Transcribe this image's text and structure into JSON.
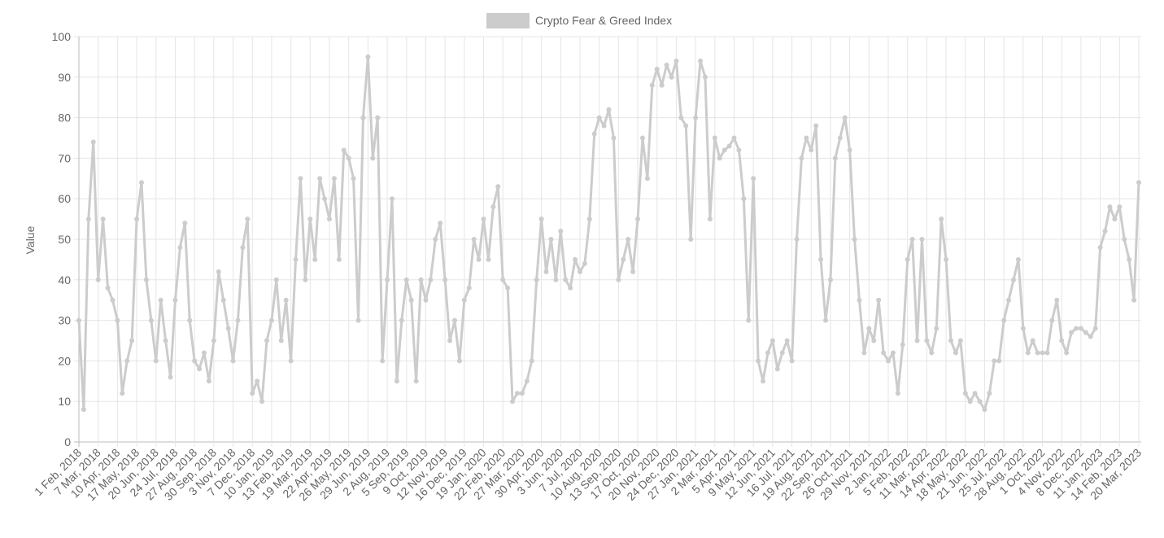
{
  "chart_data": {
    "type": "line",
    "y_label": "Value",
    "legend": "top",
    "grid": true,
    "ylim": [
      0,
      100
    ],
    "yticks": [
      0,
      10,
      20,
      30,
      40,
      50,
      60,
      70,
      80,
      90,
      100
    ],
    "categories": [
      "1 Feb, 2018",
      null,
      null,
      null,
      "7 Mar, 2018",
      null,
      null,
      null,
      "10 Apr, 2018",
      null,
      null,
      null,
      "17 May, 2018",
      null,
      null,
      null,
      "20 Jun, 2018",
      null,
      null,
      null,
      "24 Jul, 2018",
      null,
      null,
      null,
      "27 Aug, 2018",
      null,
      null,
      null,
      "30 Sep, 2018",
      null,
      null,
      null,
      "3 Nov, 2018",
      null,
      null,
      null,
      "7 Dec, 2018",
      null,
      null,
      null,
      "10 Jan, 2019",
      null,
      null,
      null,
      "13 Feb, 2019",
      null,
      null,
      null,
      "19 Mar, 2019",
      null,
      null,
      null,
      "22 Apr, 2019",
      null,
      null,
      null,
      "26 May, 2019",
      null,
      null,
      null,
      "29 Jun, 2019",
      null,
      null,
      null,
      "2 Aug, 2019",
      null,
      null,
      null,
      "5 Sep, 2019",
      null,
      null,
      null,
      "9 Oct, 2019",
      null,
      null,
      null,
      "12 Nov, 2019",
      null,
      null,
      null,
      "16 Dec, 2019",
      null,
      null,
      null,
      "19 Jan, 2020",
      null,
      null,
      null,
      "22 Feb, 2020",
      null,
      null,
      null,
      "27 Mar, 2020",
      null,
      null,
      null,
      "30 Apr, 2020",
      null,
      null,
      null,
      "3 Jun, 2020",
      null,
      null,
      null,
      "7 Jul, 2020",
      null,
      null,
      null,
      "10 Aug, 2020",
      null,
      null,
      null,
      "13 Sep, 2020",
      null,
      null,
      null,
      "17 Oct, 2020",
      null,
      null,
      null,
      "20 Nov, 2020",
      null,
      null,
      null,
      "24 Dec, 2020",
      null,
      null,
      null,
      "27 Jan, 2021",
      null,
      null,
      null,
      "2 Mar, 2021",
      null,
      null,
      null,
      "5 Apr, 2021",
      null,
      null,
      null,
      "9 May, 2021",
      null,
      null,
      null,
      "12 Jun, 2021",
      null,
      null,
      null,
      "16 Jul, 2021",
      null,
      null,
      null,
      "19 Aug, 2021",
      null,
      null,
      null,
      "22 Sep, 2021",
      null,
      null,
      null,
      "26 Oct, 2021",
      null,
      null,
      null,
      "29 Nov, 2021",
      null,
      null,
      null,
      "2 Jan, 2022",
      null,
      null,
      null,
      "5 Feb, 2022",
      null,
      null,
      null,
      "11 Mar, 2022",
      null,
      null,
      null,
      "14 Apr, 2022",
      null,
      null,
      null,
      "18 May, 2022",
      null,
      null,
      null,
      "21 Jun, 2022",
      null,
      null,
      null,
      "25 Jul, 2022",
      null,
      null,
      null,
      "28 Aug, 2022",
      null,
      null,
      null,
      "1 Oct, 2022",
      null,
      null,
      null,
      "4 Nov, 2022",
      null,
      null,
      null,
      "8 Dec, 2022",
      null,
      null,
      null,
      "11 Jan, 2023",
      null,
      null,
      null,
      "14 Feb, 2023",
      null,
      null,
      null,
      "20 Mar, 2023"
    ],
    "series": [
      {
        "name": "Crypto Fear & Greed Index",
        "color": "#cccccc",
        "values": [
          30,
          8,
          55,
          74,
          40,
          55,
          38,
          35,
          30,
          12,
          20,
          25,
          55,
          64,
          40,
          30,
          20,
          35,
          25,
          16,
          35,
          48,
          54,
          30,
          20,
          18,
          22,
          15,
          25,
          42,
          35,
          28,
          20,
          30,
          48,
          55,
          12,
          15,
          10,
          25,
          30,
          40,
          25,
          35,
          20,
          45,
          65,
          40,
          55,
          45,
          65,
          60,
          55,
          65,
          45,
          72,
          70,
          65,
          30,
          80,
          95,
          70,
          80,
          20,
          40,
          60,
          15,
          30,
          40,
          35,
          15,
          40,
          35,
          40,
          50,
          54,
          40,
          25,
          30,
          20,
          35,
          38,
          50,
          45,
          55,
          45,
          58,
          63,
          40,
          38,
          10,
          12,
          12,
          15,
          20,
          40,
          55,
          42,
          50,
          40,
          52,
          40,
          38,
          45,
          42,
          44,
          55,
          76,
          80,
          78,
          82,
          75,
          40,
          45,
          50,
          42,
          55,
          75,
          65,
          88,
          92,
          88,
          93,
          90,
          94,
          80,
          78,
          50,
          80,
          94,
          90,
          55,
          75,
          70,
          72,
          73,
          75,
          72,
          60,
          30,
          65,
          20,
          15,
          22,
          25,
          18,
          22,
          25,
          20,
          50,
          70,
          75,
          72,
          78,
          45,
          30,
          40,
          70,
          75,
          80,
          72,
          50,
          35,
          22,
          28,
          25,
          35,
          22,
          20,
          22,
          12,
          24,
          45,
          50,
          25,
          50,
          25,
          22,
          28,
          55,
          45,
          25,
          22,
          25,
          12,
          10,
          12,
          10,
          8,
          12,
          20,
          20,
          30,
          35,
          40,
          45,
          28,
          22,
          25,
          22,
          22,
          22,
          30,
          35,
          25,
          22,
          27,
          28,
          28,
          27,
          26,
          28,
          48,
          52,
          58,
          55,
          58,
          50,
          45,
          35,
          64
        ]
      }
    ]
  }
}
